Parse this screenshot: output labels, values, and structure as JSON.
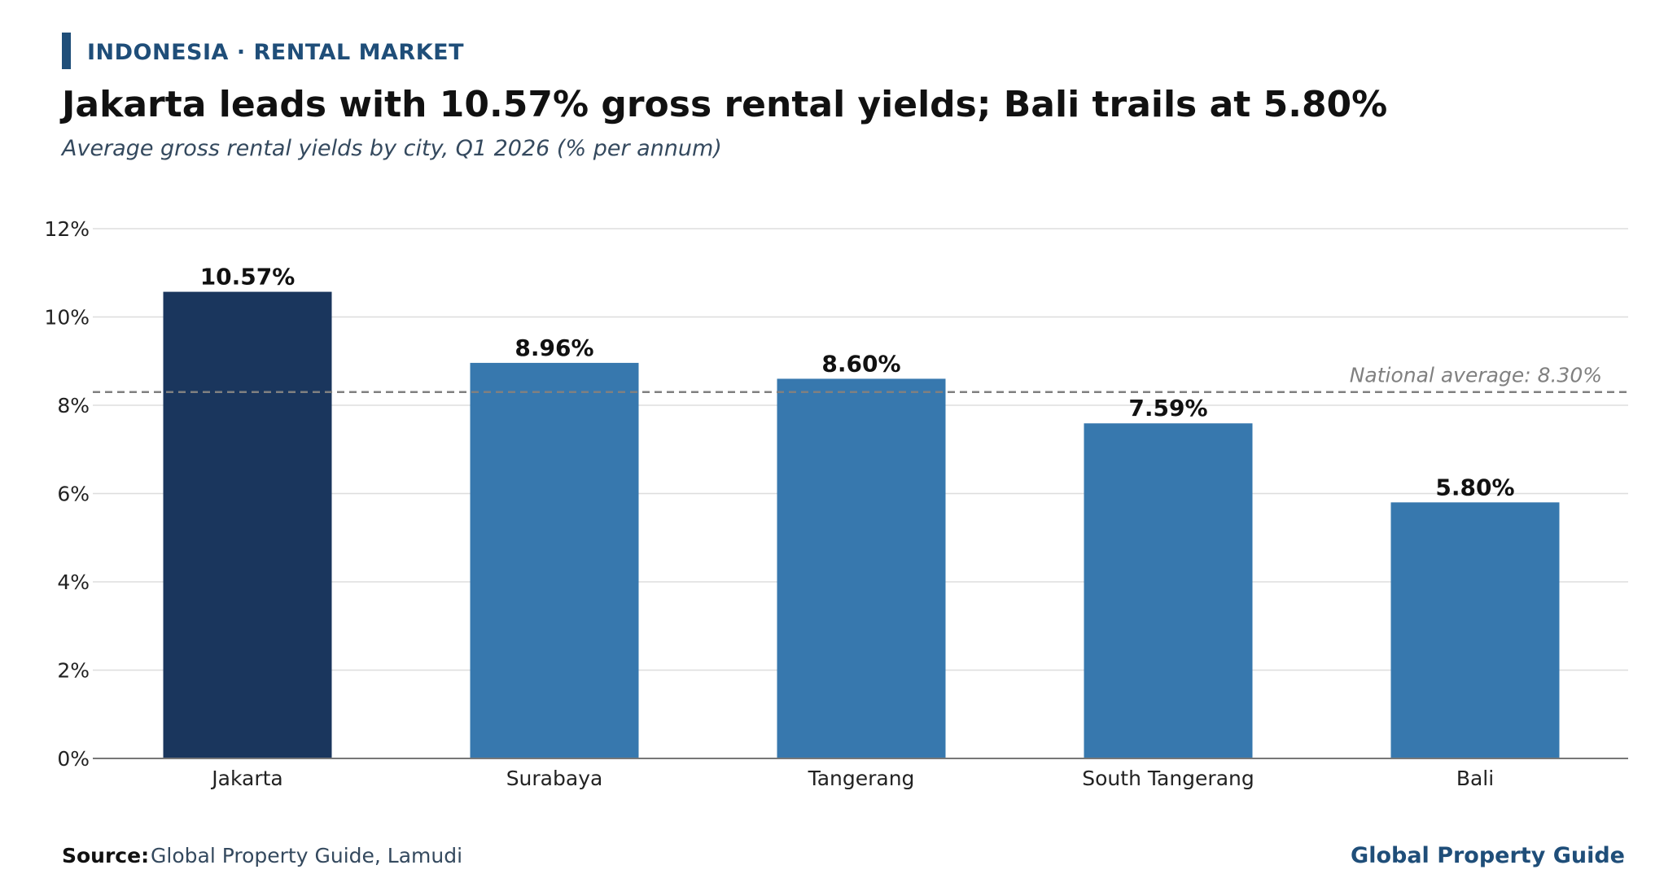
{
  "header": {
    "eyebrow": "INDONESIA · RENTAL MARKET",
    "title": "Jakarta leads with 10.57% gross rental yields; Bali trails at 5.80%",
    "subtitle": "Average gross rental yields by city, Q1 2026 (% per annum)"
  },
  "footer": {
    "source_label": "Source:",
    "source_text": "Global Property Guide, Lamudi",
    "brand": "Global Property Guide"
  },
  "colors": {
    "accent": "#1f4e79",
    "highlight_bar": "#1a365d",
    "bar": "#3778ae",
    "reference_line": "#808080"
  },
  "chart_data": {
    "type": "bar",
    "categories": [
      "Jakarta",
      "Surabaya",
      "Tangerang",
      "South Tangerang",
      "Bali"
    ],
    "values": [
      10.57,
      8.96,
      8.6,
      7.59,
      5.8
    ],
    "data_labels": [
      "10.57%",
      "8.96%",
      "8.60%",
      "7.59%",
      "5.80%"
    ],
    "highlight_index": 0,
    "ylim": [
      0,
      12
    ],
    "yticks": [
      0,
      2,
      4,
      6,
      8,
      10,
      12
    ],
    "ytick_labels": [
      "0%",
      "2%",
      "4%",
      "6%",
      "8%",
      "10%",
      "12%"
    ],
    "grid": true,
    "reference_line": {
      "value": 8.3,
      "label": "National average: 8.30%",
      "style": "dashed"
    },
    "title": "Jakarta leads with 10.57% gross rental yields; Bali trails at 5.80%",
    "subtitle": "Average gross rental yields by city, Q1 2026 (% per annum)",
    "xlabel": "",
    "ylabel": ""
  }
}
